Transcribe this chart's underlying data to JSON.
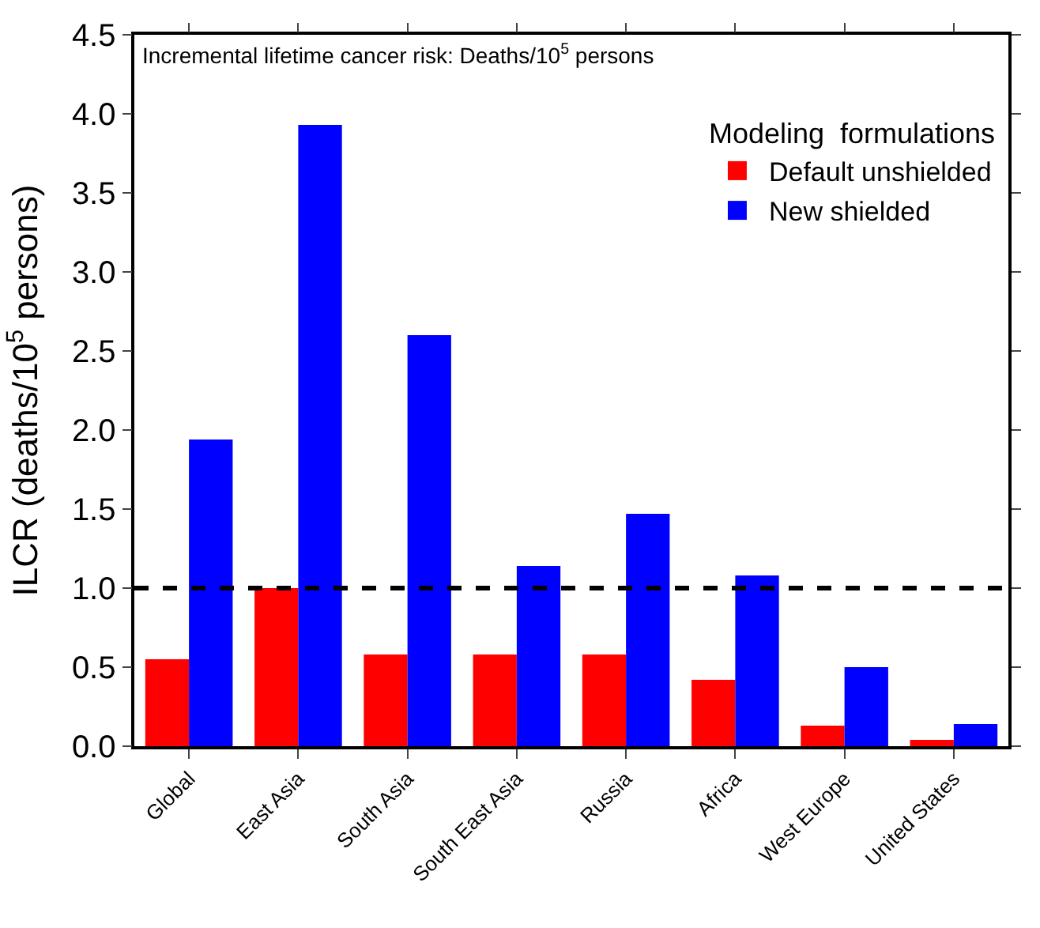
{
  "chart_data": {
    "type": "bar",
    "ylabel": "ILCR (deaths/10$^{5}$ persons)",
    "legend_title": "Modeling  formulations",
    "legend": "top right",
    "categories": [
      "Global",
      "East Asia",
      "South Asia",
      "South East Asia",
      "Russia",
      "Africa",
      "West Europe",
      "United States"
    ],
    "series": [
      {
        "name": "Default unshielded",
        "color": "#ff0000",
        "values": [
          0.55,
          1.0,
          0.58,
          0.58,
          0.58,
          0.42,
          0.13,
          0.04
        ]
      },
      {
        "name": "New shielded",
        "color": "#0000ff",
        "values": [
          1.94,
          3.93,
          2.6,
          1.14,
          1.47,
          1.08,
          0.5,
          0.14
        ]
      }
    ],
    "ylim": [
      0,
      4.5
    ],
    "yticks": [
      {
        "value": 0,
        "label": "0.0"
      },
      {
        "value": 0.5,
        "label": "0.5"
      },
      {
        "value": 1,
        "label": "1.0"
      },
      {
        "value": 1.5,
        "label": "1.5"
      },
      {
        "value": 2,
        "label": "2.0"
      },
      {
        "value": 2.5,
        "label": "2.5"
      },
      {
        "value": 3,
        "label": "3.0"
      },
      {
        "value": 3.5,
        "label": "3.5"
      },
      {
        "value": 4,
        "label": "4.0"
      },
      {
        "value": 4.5,
        "label": "4.5"
      }
    ],
    "ref_lines": [
      {
        "axis": "y",
        "value": 1,
        "color": "#000000",
        "line_style": "dashed"
      }
    ],
    "annotations": [
      "Incremental lifetime cancer risk: Deaths/10$^{5}$ persons"
    ]
  }
}
